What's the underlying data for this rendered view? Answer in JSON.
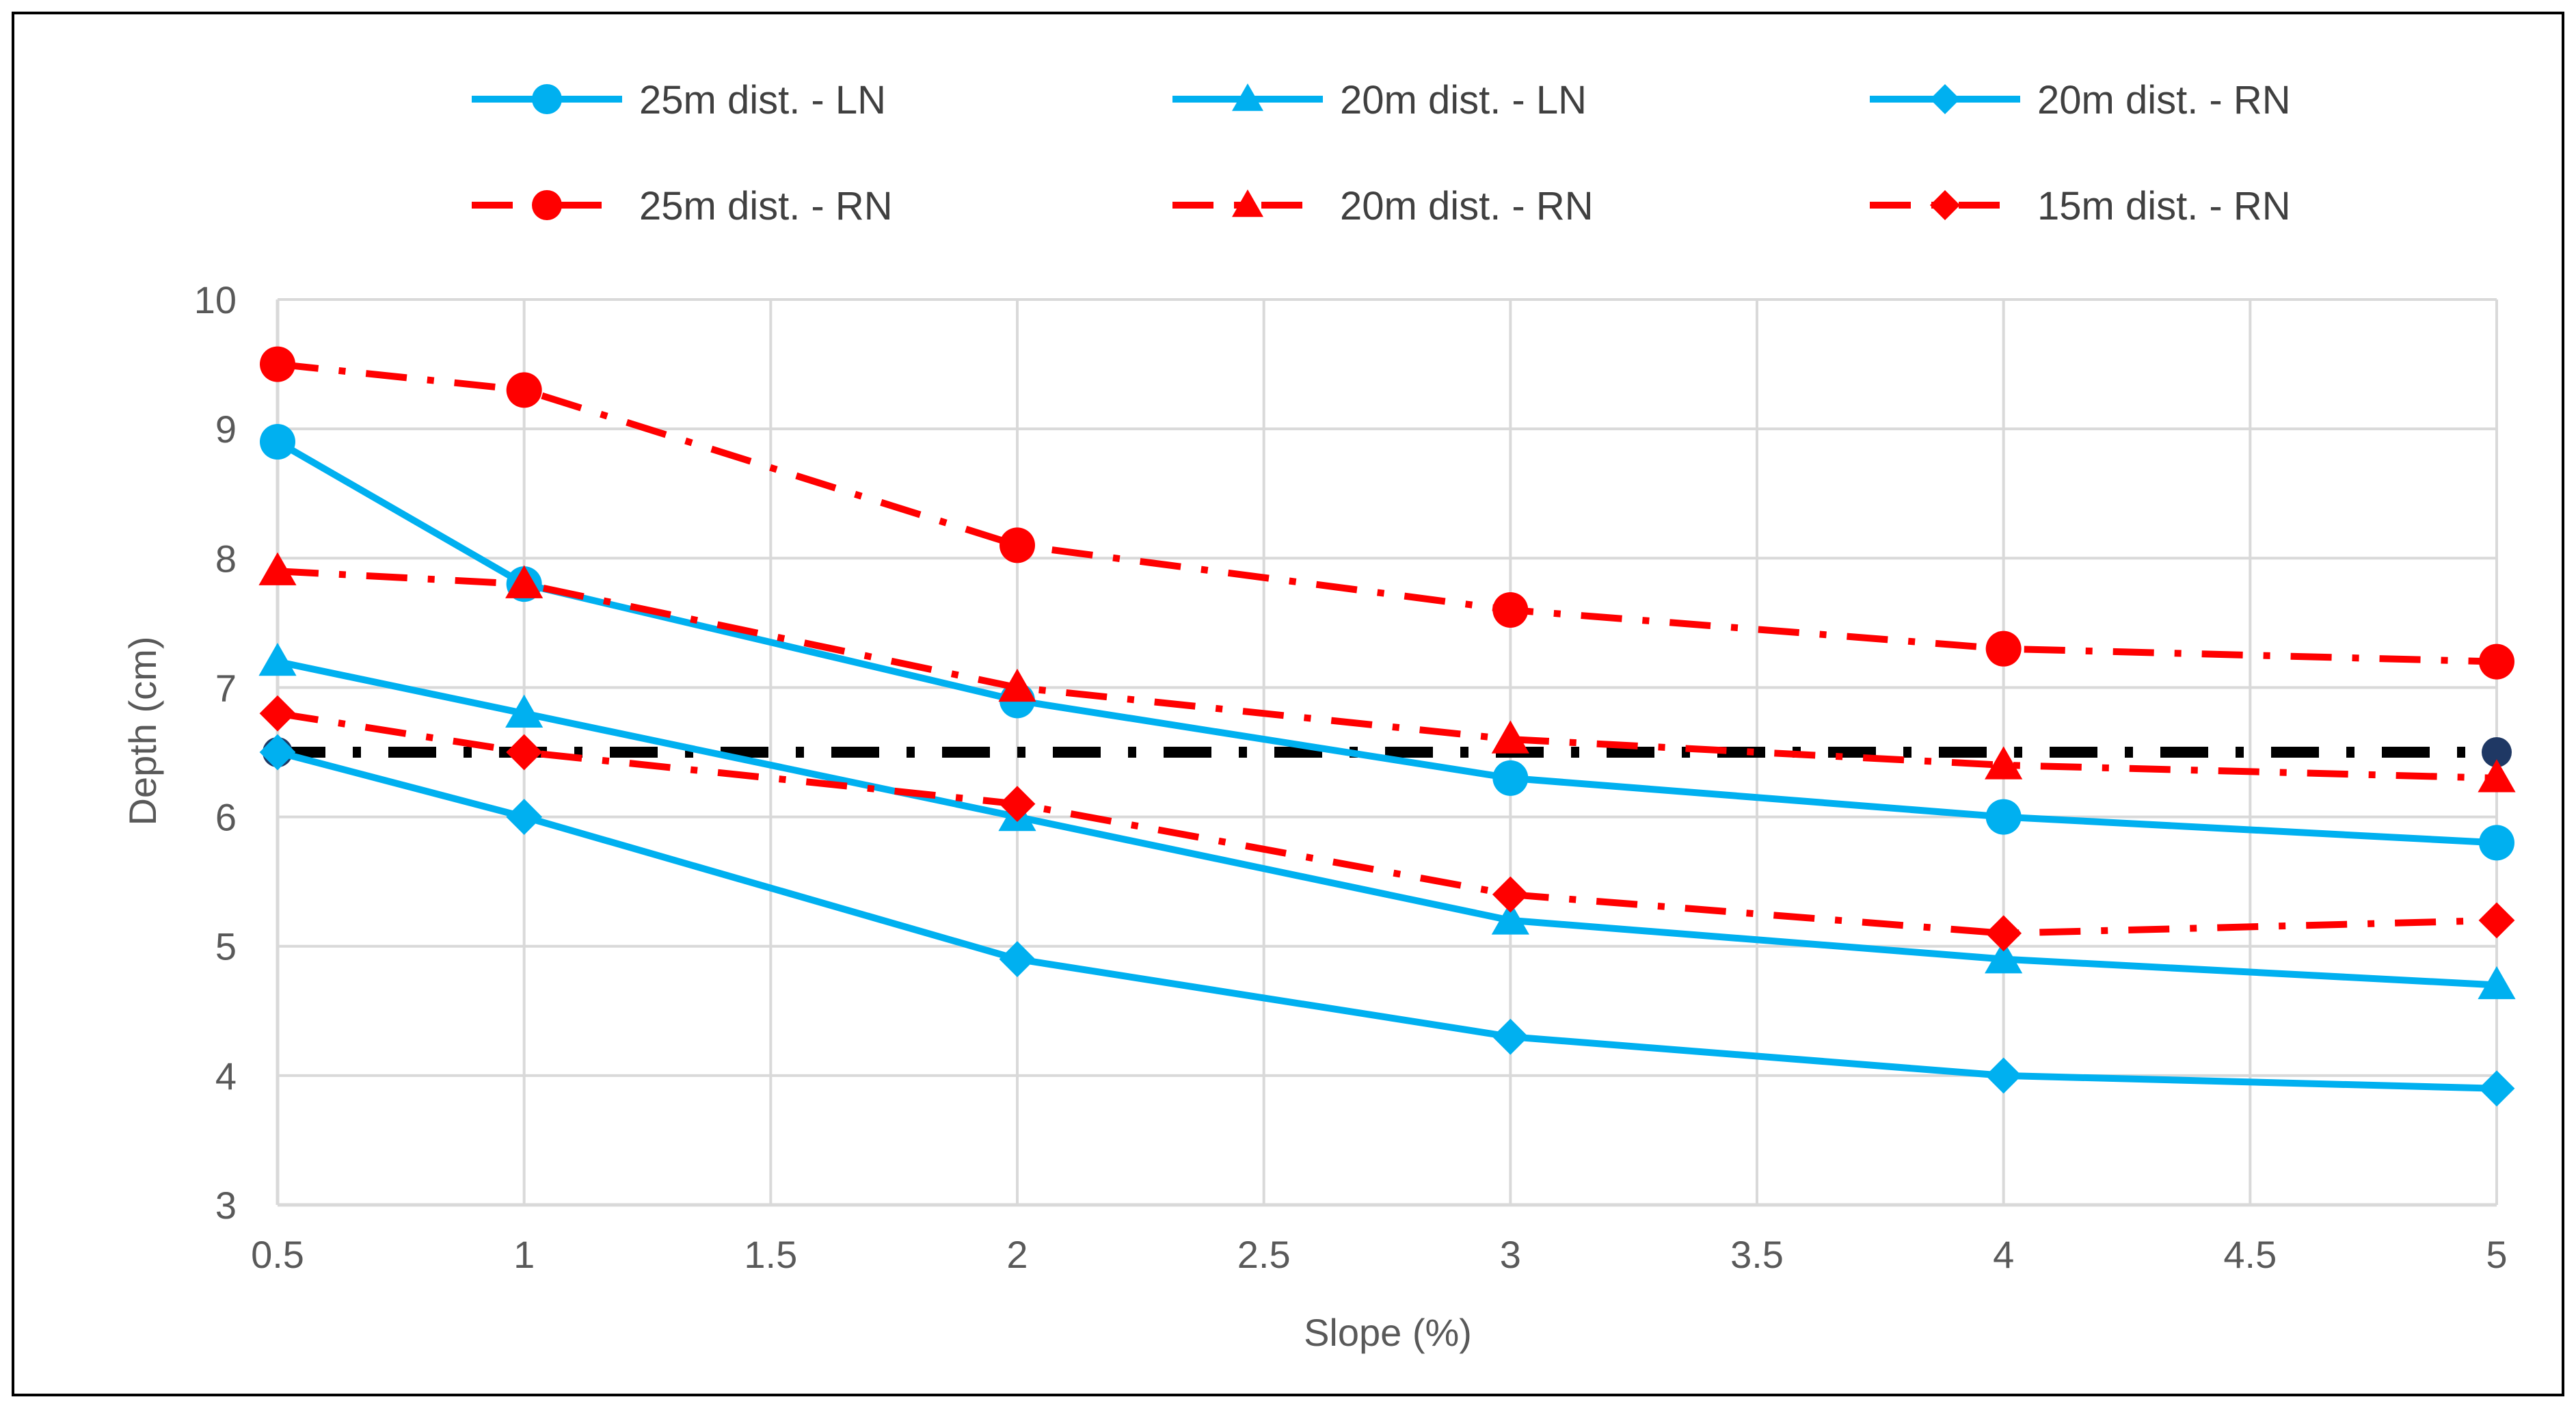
{
  "chart_data": {
    "type": "line",
    "title": "",
    "xlabel": "Slope (%)",
    "ylabel": "Depth (cm)",
    "xlim": [
      0.5,
      5
    ],
    "ylim": [
      3,
      10
    ],
    "x_ticks": [
      "0.5",
      "1",
      "1.5",
      "2",
      "2.5",
      "3",
      "3.5",
      "4",
      "4.5",
      "5"
    ],
    "y_ticks": [
      "3",
      "4",
      "5",
      "6",
      "7",
      "8",
      "9",
      "10"
    ],
    "x_tick_values": [
      0.5,
      1,
      1.5,
      2,
      2.5,
      3,
      3.5,
      4,
      4.5,
      5
    ],
    "y_tick_values": [
      3,
      4,
      5,
      6,
      7,
      8,
      9,
      10
    ],
    "grid": true,
    "legend_position": "top",
    "x": [
      0.5,
      1,
      2,
      3,
      4,
      5
    ],
    "series": [
      {
        "name": "25m dist. - LN",
        "color": "#00B0F0",
        "dash": "solid",
        "marker": "circle",
        "values": [
          8.9,
          7.8,
          6.9,
          6.3,
          6.0,
          5.8
        ]
      },
      {
        "name": "20m dist. - LN",
        "color": "#00B0F0",
        "dash": "solid",
        "marker": "triangle",
        "values": [
          7.2,
          6.8,
          6.0,
          5.2,
          4.9,
          4.7
        ]
      },
      {
        "name": "20m dist. - RN",
        "color": "#00B0F0",
        "dash": "solid",
        "marker": "diamond",
        "values": [
          6.5,
          6.0,
          4.9,
          4.3,
          4.0,
          3.9
        ]
      },
      {
        "name": "25m dist. - RN",
        "color": "#FF0000",
        "dash": "dashdot",
        "marker": "circle",
        "values": [
          9.5,
          9.3,
          8.1,
          7.6,
          7.3,
          7.2
        ]
      },
      {
        "name": "20m dist. - RN",
        "color": "#FF0000",
        "dash": "dashdot",
        "marker": "triangle",
        "values": [
          7.9,
          7.8,
          7.0,
          6.6,
          6.4,
          6.3
        ]
      },
      {
        "name": "15m dist. - RN",
        "color": "#FF0000",
        "dash": "dashdot",
        "marker": "diamond",
        "values": [
          6.8,
          6.5,
          6.1,
          5.4,
          5.1,
          5.2
        ]
      }
    ],
    "reference_line": {
      "color": "#000000",
      "marker_color": "#1F3864",
      "x": [
        0.5,
        5
      ],
      "values": [
        6.5,
        6.5
      ]
    }
  }
}
